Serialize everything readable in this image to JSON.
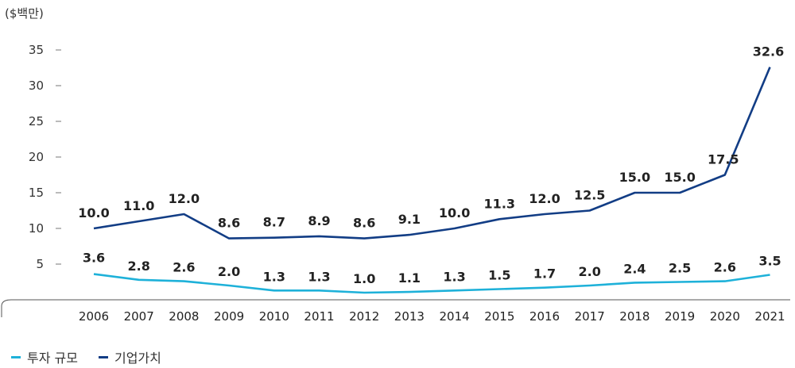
{
  "chart_data": {
    "type": "line",
    "unit_label": "($백만)",
    "categories": [
      "2006",
      "2007",
      "2008",
      "2009",
      "2010",
      "2011",
      "2012",
      "2013",
      "2014",
      "2015",
      "2016",
      "2017",
      "2018",
      "2019",
      "2020",
      "2021"
    ],
    "y_ticks": [
      5,
      10,
      15,
      20,
      25,
      30,
      35
    ],
    "ylim": [
      0,
      37
    ],
    "grid": false,
    "legend_position": "bottom-left",
    "series": [
      {
        "name": "투자 규모",
        "color": "#1EB1D9",
        "values": [
          3.6,
          2.8,
          2.6,
          2.0,
          1.3,
          1.3,
          1.0,
          1.1,
          1.3,
          1.5,
          1.7,
          2.0,
          2.4,
          2.5,
          2.6,
          3.5
        ],
        "labels": [
          "3.6",
          "2.8",
          "2.6",
          "2.0",
          "1.3",
          "1.3",
          "1.0",
          "1.1",
          "1.3",
          "1.5",
          "1.7",
          "2.0",
          "2.4",
          "2.5",
          "2.6",
          "3.5"
        ]
      },
      {
        "name": "기업가치",
        "color": "#123D85",
        "values": [
          10.0,
          11.0,
          12.0,
          8.6,
          8.7,
          8.9,
          8.6,
          9.1,
          10.0,
          11.3,
          12.0,
          12.5,
          15.0,
          15.0,
          17.5,
          32.6
        ],
        "labels": [
          "10.0",
          "11.0",
          "12.0",
          "8.6",
          "8.7",
          "8.9",
          "8.6",
          "9.1",
          "10.0",
          "11.3",
          "12.0",
          "12.5",
          "15.0",
          "15.0",
          "17.5",
          "32.6"
        ]
      }
    ]
  }
}
